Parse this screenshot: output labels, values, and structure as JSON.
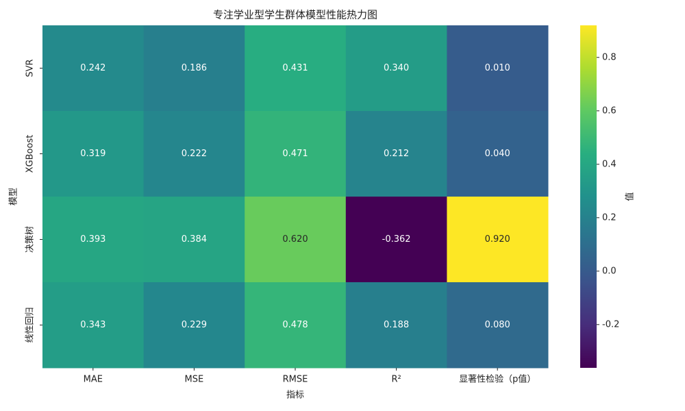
{
  "chart_data": {
    "type": "heatmap",
    "title": "专注学业型学生群体模型性能热力图",
    "x_label": "指标",
    "y_label": "模型",
    "categories": [
      "MAE",
      "MSE",
      "RMSE",
      "R²",
      "显著性检验（p值）"
    ],
    "rows": [
      "SVR",
      "XGBoost",
      "决策树",
      "线性回归"
    ],
    "values": [
      [
        0.242,
        0.186,
        0.431,
        0.34,
        0.01
      ],
      [
        0.319,
        0.222,
        0.471,
        0.212,
        0.04
      ],
      [
        0.393,
        0.384,
        0.62,
        -0.362,
        0.92
      ],
      [
        0.343,
        0.229,
        0.478,
        0.188,
        0.08
      ]
    ],
    "value_labels": [
      [
        "0.242",
        "0.186",
        "0.431",
        "0.340",
        "0.010"
      ],
      [
        "0.319",
        "0.222",
        "0.471",
        "0.212",
        "0.040"
      ],
      [
        "0.393",
        "0.384",
        "0.620",
        "-0.362",
        "0.920"
      ],
      [
        "0.343",
        "0.229",
        "0.478",
        "0.188",
        "0.080"
      ]
    ],
    "colormap": "viridis",
    "colorbar_label": "值",
    "clim": [
      -0.362,
      0.92
    ],
    "cticks": [
      -0.2,
      {
        "value": 0,
        "label": "0.0"
      },
      0.2,
      0.4,
      0.6,
      0.8
    ]
  }
}
